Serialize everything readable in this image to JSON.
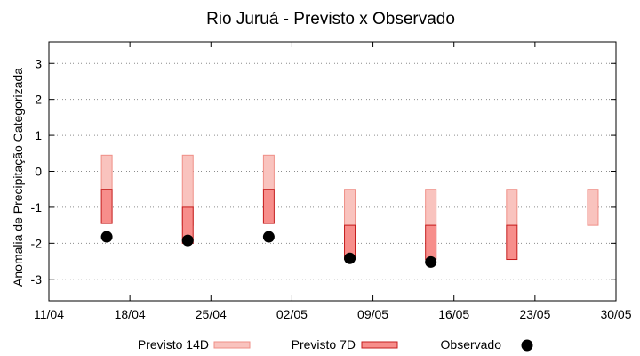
{
  "chart_data": {
    "type": "range-bar",
    "title": "Rio Juruá - Previsto x Observado",
    "xlabel": "",
    "ylabel": "Anomalia de Precipitação Categorizada",
    "ylim": [
      -3.6,
      3.6
    ],
    "yticks": [
      3,
      2,
      1,
      0,
      -1,
      -2,
      -3
    ],
    "ytick_labels": [
      "3",
      "2",
      "1",
      "0",
      "-1",
      "-2",
      "-3"
    ],
    "xrange": [
      "11/04",
      "30/05"
    ],
    "xticks": [
      "11/04",
      "18/04",
      "25/04",
      "02/05",
      "09/05",
      "16/05",
      "23/05",
      "30/05"
    ],
    "grid": "horizontal-dotted",
    "legend_position": "bottom",
    "colors": {
      "previsto_14d_fill": "#f9c3be",
      "previsto_14d_stroke": "#ef8f87",
      "previsto_7d_fill": "#f78e8b",
      "previsto_7d_stroke": "#c41c1c",
      "observado": "#000000",
      "grid": "#8c8c8c"
    },
    "x": [
      "16/04",
      "23/04",
      "30/04",
      "07/05",
      "14/05",
      "21/05",
      "28/05"
    ],
    "series": [
      {
        "name": "Previsto 14D",
        "kind": "range",
        "low": [
          -0.5,
          -1.5,
          -0.5,
          -1.5,
          -1.5,
          -1.5,
          -1.5
        ],
        "high": [
          0.45,
          0.45,
          0.45,
          -0.5,
          -0.5,
          -0.5,
          -0.5
        ]
      },
      {
        "name": "Previsto 7D",
        "kind": "range",
        "low": [
          -1.45,
          -2.0,
          -1.45,
          -2.45,
          -2.45,
          -2.45,
          null
        ],
        "high": [
          -0.5,
          -1.0,
          -0.5,
          -1.5,
          -1.5,
          -1.5,
          null
        ]
      },
      {
        "name": "Observado",
        "kind": "point",
        "values": [
          -1.82,
          -1.92,
          -1.82,
          -2.42,
          -2.52,
          null,
          null
        ]
      }
    ]
  }
}
